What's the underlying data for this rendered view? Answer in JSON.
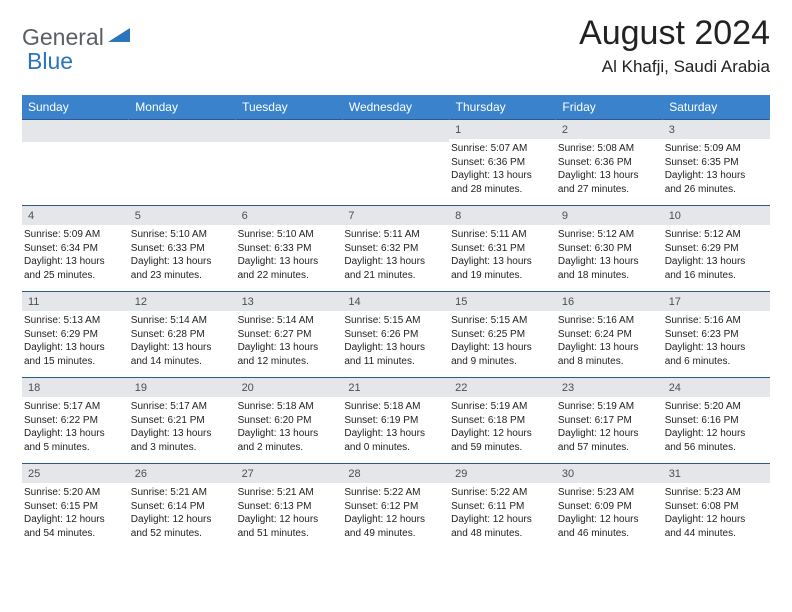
{
  "logo": {
    "word1": "General",
    "word2": "Blue"
  },
  "title": "August 2024",
  "subtitle": "Al Khafji, Saudi Arabia",
  "colors": {
    "header_bg": "#3a83cc",
    "header_fg": "#ffffff",
    "daynum_bg": "#e4e6e9",
    "daynum_fg": "#4a4f55",
    "row_border": "#2a5b8a",
    "logo_gray": "#5a5f66",
    "logo_blue": "#2a75bb"
  },
  "weekdays": [
    "Sunday",
    "Monday",
    "Tuesday",
    "Wednesday",
    "Thursday",
    "Friday",
    "Saturday"
  ],
  "leading_blanks": 4,
  "days": [
    {
      "n": "1",
      "sr": "5:07 AM",
      "ss": "6:36 PM",
      "dl": "13 hours and 28 minutes."
    },
    {
      "n": "2",
      "sr": "5:08 AM",
      "ss": "6:36 PM",
      "dl": "13 hours and 27 minutes."
    },
    {
      "n": "3",
      "sr": "5:09 AM",
      "ss": "6:35 PM",
      "dl": "13 hours and 26 minutes."
    },
    {
      "n": "4",
      "sr": "5:09 AM",
      "ss": "6:34 PM",
      "dl": "13 hours and 25 minutes."
    },
    {
      "n": "5",
      "sr": "5:10 AM",
      "ss": "6:33 PM",
      "dl": "13 hours and 23 minutes."
    },
    {
      "n": "6",
      "sr": "5:10 AM",
      "ss": "6:33 PM",
      "dl": "13 hours and 22 minutes."
    },
    {
      "n": "7",
      "sr": "5:11 AM",
      "ss": "6:32 PM",
      "dl": "13 hours and 21 minutes."
    },
    {
      "n": "8",
      "sr": "5:11 AM",
      "ss": "6:31 PM",
      "dl": "13 hours and 19 minutes."
    },
    {
      "n": "9",
      "sr": "5:12 AM",
      "ss": "6:30 PM",
      "dl": "13 hours and 18 minutes."
    },
    {
      "n": "10",
      "sr": "5:12 AM",
      "ss": "6:29 PM",
      "dl": "13 hours and 16 minutes."
    },
    {
      "n": "11",
      "sr": "5:13 AM",
      "ss": "6:29 PM",
      "dl": "13 hours and 15 minutes."
    },
    {
      "n": "12",
      "sr": "5:14 AM",
      "ss": "6:28 PM",
      "dl": "13 hours and 14 minutes."
    },
    {
      "n": "13",
      "sr": "5:14 AM",
      "ss": "6:27 PM",
      "dl": "13 hours and 12 minutes."
    },
    {
      "n": "14",
      "sr": "5:15 AM",
      "ss": "6:26 PM",
      "dl": "13 hours and 11 minutes."
    },
    {
      "n": "15",
      "sr": "5:15 AM",
      "ss": "6:25 PM",
      "dl": "13 hours and 9 minutes."
    },
    {
      "n": "16",
      "sr": "5:16 AM",
      "ss": "6:24 PM",
      "dl": "13 hours and 8 minutes."
    },
    {
      "n": "17",
      "sr": "5:16 AM",
      "ss": "6:23 PM",
      "dl": "13 hours and 6 minutes."
    },
    {
      "n": "18",
      "sr": "5:17 AM",
      "ss": "6:22 PM",
      "dl": "13 hours and 5 minutes."
    },
    {
      "n": "19",
      "sr": "5:17 AM",
      "ss": "6:21 PM",
      "dl": "13 hours and 3 minutes."
    },
    {
      "n": "20",
      "sr": "5:18 AM",
      "ss": "6:20 PM",
      "dl": "13 hours and 2 minutes."
    },
    {
      "n": "21",
      "sr": "5:18 AM",
      "ss": "6:19 PM",
      "dl": "13 hours and 0 minutes."
    },
    {
      "n": "22",
      "sr": "5:19 AM",
      "ss": "6:18 PM",
      "dl": "12 hours and 59 minutes."
    },
    {
      "n": "23",
      "sr": "5:19 AM",
      "ss": "6:17 PM",
      "dl": "12 hours and 57 minutes."
    },
    {
      "n": "24",
      "sr": "5:20 AM",
      "ss": "6:16 PM",
      "dl": "12 hours and 56 minutes."
    },
    {
      "n": "25",
      "sr": "5:20 AM",
      "ss": "6:15 PM",
      "dl": "12 hours and 54 minutes."
    },
    {
      "n": "26",
      "sr": "5:21 AM",
      "ss": "6:14 PM",
      "dl": "12 hours and 52 minutes."
    },
    {
      "n": "27",
      "sr": "5:21 AM",
      "ss": "6:13 PM",
      "dl": "12 hours and 51 minutes."
    },
    {
      "n": "28",
      "sr": "5:22 AM",
      "ss": "6:12 PM",
      "dl": "12 hours and 49 minutes."
    },
    {
      "n": "29",
      "sr": "5:22 AM",
      "ss": "6:11 PM",
      "dl": "12 hours and 48 minutes."
    },
    {
      "n": "30",
      "sr": "5:23 AM",
      "ss": "6:09 PM",
      "dl": "12 hours and 46 minutes."
    },
    {
      "n": "31",
      "sr": "5:23 AM",
      "ss": "6:08 PM",
      "dl": "12 hours and 44 minutes."
    }
  ],
  "labels": {
    "sunrise": "Sunrise:",
    "sunset": "Sunset:",
    "daylight": "Daylight:"
  }
}
